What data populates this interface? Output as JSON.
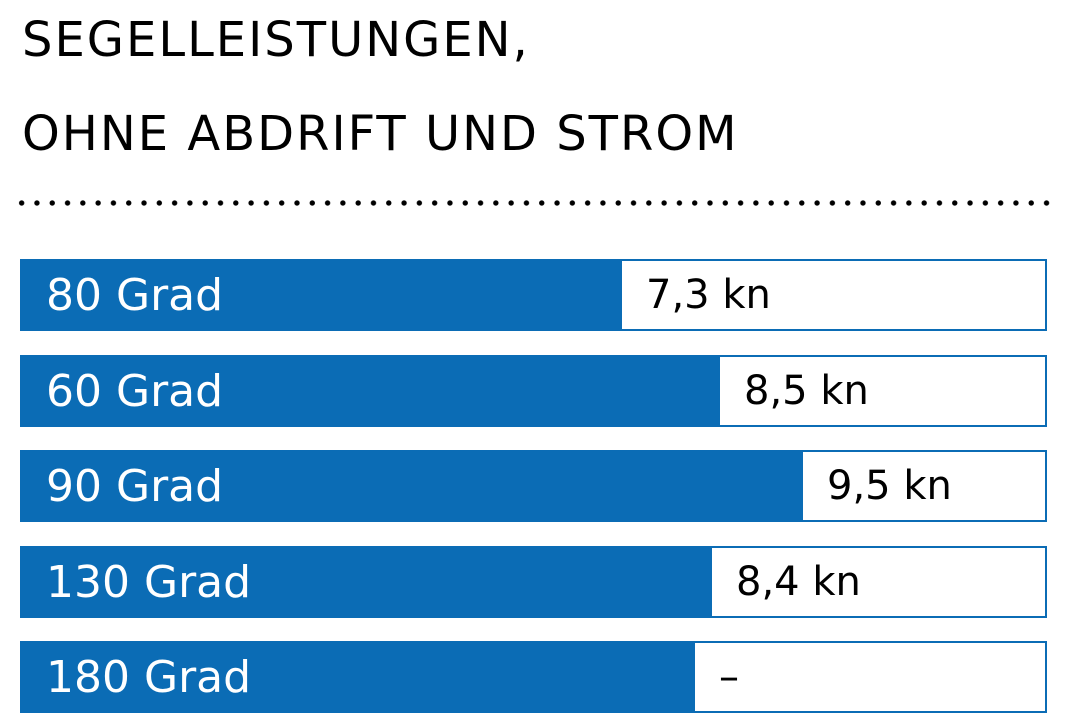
{
  "title": {
    "line1": "SEGELLEISTUNGEN,",
    "line2": "OHNE ABDRIFT UND STROM"
  },
  "colors": {
    "bar": "#0b6cb5",
    "background": "#ffffff",
    "text": "#000000",
    "bar_text": "#ffffff"
  },
  "chart_data": {
    "type": "bar",
    "orientation": "horizontal",
    "title": "SEGELLEISTUNGEN, OHNE ABDRIFT UND STROM",
    "categories": [
      "80 Grad",
      "60 Grad",
      "90 Grad",
      "130 Grad",
      "180 Grad"
    ],
    "values": [
      7.3,
      8.5,
      9.5,
      8.4,
      null
    ],
    "value_labels": [
      "7,3 kn",
      "8,5 kn",
      "9,5 kn",
      "8,4 kn",
      "–"
    ],
    "unit": "kn",
    "xlim": [
      0,
      12.5
    ],
    "grid": false,
    "legend": "none"
  }
}
